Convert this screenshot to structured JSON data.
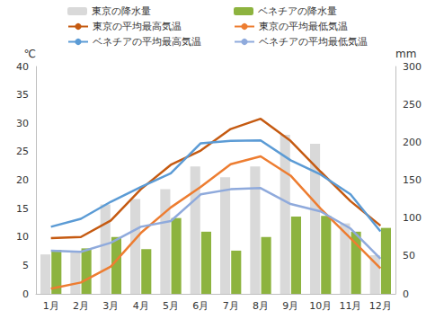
{
  "chart_data": {
    "type": "bar",
    "y_label": "℃",
    "y2_label": "mm",
    "categories": [
      "1月",
      "2月",
      "3月",
      "4月",
      "5月",
      "6月",
      "7月",
      "8月",
      "9月",
      "10月",
      "11月",
      "12月"
    ],
    "series": [
      {
        "name": "東京の降水量",
        "type": "bar",
        "axis": "y2",
        "color": "#d9d9d9",
        "values": [
          52,
          56,
          118,
          125,
          138,
          168,
          154,
          168,
          210,
          198,
          93,
          51
        ]
      },
      {
        "name": "ベネチアの降水量",
        "type": "bar",
        "axis": "y2",
        "color": "#8db33f",
        "values": [
          58,
          60,
          75,
          59,
          100,
          82,
          57,
          75,
          102,
          103,
          82,
          87
        ]
      },
      {
        "name": "東京の平均最高気温",
        "type": "line",
        "color": "#c55a11",
        "marker": "none",
        "line_style": "solid",
        "values": [
          9.8,
          10.0,
          12.9,
          18.4,
          22.7,
          25.2,
          29.0,
          30.8,
          26.9,
          21.5,
          16.3,
          12.0
        ]
      },
      {
        "name": "東京の平均最低気温",
        "type": "line",
        "color": "#ed7d31",
        "marker": "none",
        "line_style": "solid",
        "values": [
          0.9,
          2.0,
          4.8,
          10.7,
          15.2,
          18.8,
          22.8,
          24.2,
          20.8,
          15.0,
          9.8,
          4.5
        ]
      },
      {
        "name": "ベネチアの平均最高気温",
        "type": "line",
        "color": "#5b9bd5",
        "marker": "none",
        "line_style": "solid",
        "values": [
          11.8,
          13.2,
          16.2,
          18.8,
          21.2,
          26.5,
          26.9,
          27.0,
          23.5,
          21.0,
          17.5,
          11.0
        ]
      },
      {
        "name": "ベネチアの平均最低気温",
        "type": "line",
        "color": "#8faadc",
        "marker": "none",
        "line_style": "solid",
        "values": [
          7.6,
          7.4,
          9.0,
          11.8,
          12.8,
          17.5,
          18.4,
          18.6,
          15.8,
          14.5,
          11.5,
          6.2
        ]
      }
    ],
    "ylim": [
      0,
      40
    ],
    "yticks": [
      0,
      5,
      10,
      15,
      20,
      25,
      30,
      35,
      40
    ],
    "y2lim": [
      0,
      300
    ],
    "y2ticks": [
      0,
      50,
      100,
      150,
      200,
      250,
      300
    ],
    "grid": false,
    "legend": "top"
  }
}
